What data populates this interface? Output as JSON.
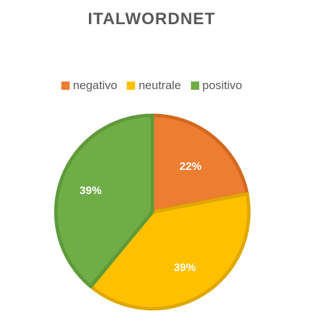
{
  "chart_data": {
    "type": "pie",
    "title": "ITALWORDNET",
    "legend_position": "top",
    "series": [
      {
        "name": "negativo",
        "value": 22,
        "label": "22%",
        "color": "#ED7D31",
        "border": "#D2691E"
      },
      {
        "name": "neutrale",
        "value": 39,
        "label": "39%",
        "color": "#FFC000",
        "border": "#E0A800"
      },
      {
        "name": "positivo",
        "value": 39,
        "label": "39%",
        "color": "#70AD47",
        "border": "#5E9A3A"
      }
    ]
  }
}
